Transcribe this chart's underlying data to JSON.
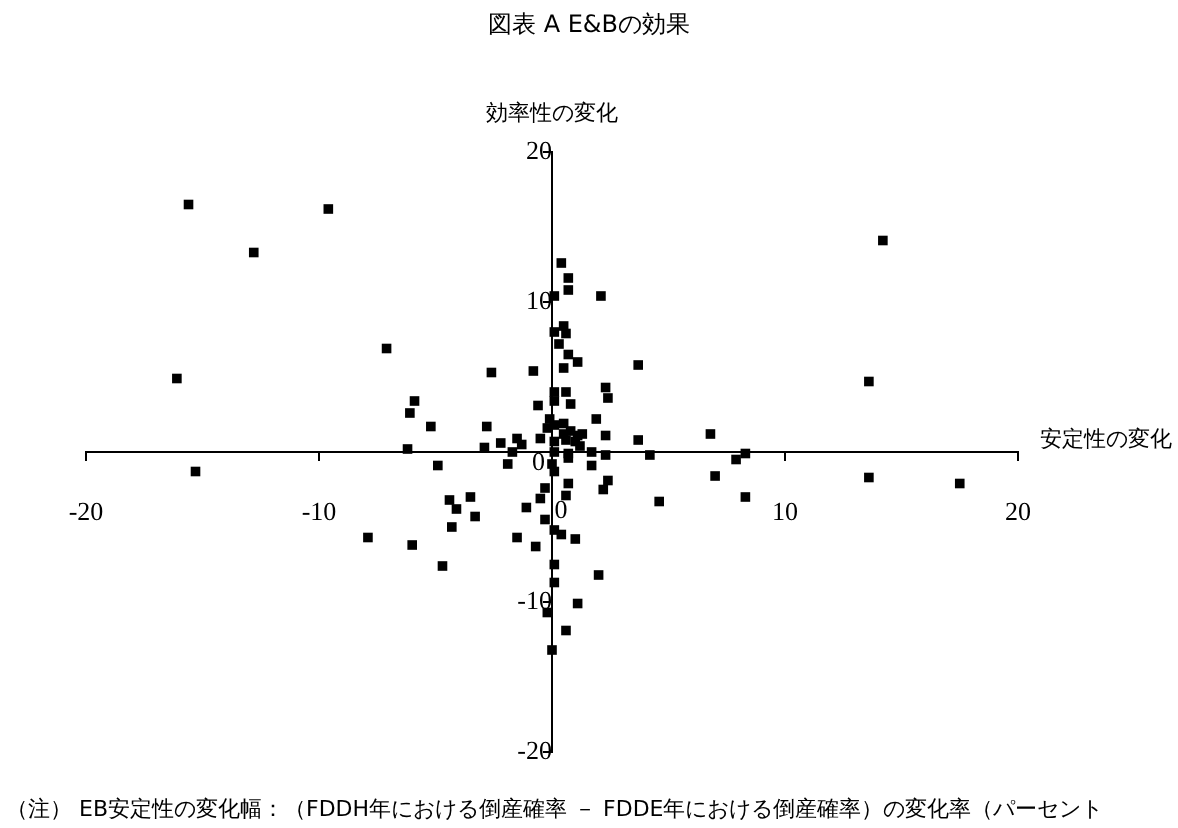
{
  "chart_data": {
    "type": "scatter",
    "title": "図表 A E&Bの効果",
    "xlabel": "安定性の変化",
    "ylabel": "効率性の変化",
    "annotations": [
      "（注） EB安定性の変化幅：（FDDH年における倒産確率 － FDDE年における倒産確率）の変化率（パーセント"
    ],
    "x": [
      0.4,
      0.7,
      0.7,
      0.1,
      2.1,
      0.5,
      0.1,
      0.6,
      0.3,
      0.7,
      1.1,
      0.5,
      3.7,
      -2.6,
      -0.8,
      2.3,
      2.4,
      0.1,
      0.6,
      0.1,
      0.8,
      -0.6,
      -5.9,
      -6.1,
      -5.2,
      -2.8,
      -0.1,
      0.1,
      0.5,
      1.9,
      -0.2,
      0.5,
      0.8,
      1.1,
      1.3,
      2.3,
      3.7,
      6.8,
      -6.2,
      -2.9,
      -2.2,
      -1.5,
      -1.3,
      -1.7,
      -0.5,
      0.1,
      0.6,
      1.0,
      0.1,
      0.7,
      0.7,
      1.2,
      1.7,
      2.3,
      4.2,
      7.9,
      8.3,
      -4.9,
      -1.9,
      0.0,
      0.1,
      1.7,
      -15.3,
      7.0,
      13.6,
      17.5,
      2.4,
      2.2,
      0.7,
      0.6,
      -0.3,
      -0.5,
      4.6,
      8.3,
      -4.4,
      -3.5,
      -4.1,
      -3.3,
      -4.3,
      -1.1,
      -0.3,
      0.1,
      0.4,
      1.0,
      -1.5,
      -0.7,
      -6.0,
      -7.9,
      -4.7,
      0.1,
      0.1,
      2.0,
      1.1,
      -0.2,
      0.6,
      0.0,
      -15.6,
      -9.6,
      -12.8,
      -7.1,
      -16.1,
      14.2,
      13.6
    ],
    "values": [
      12.6,
      11.6,
      10.8,
      10.4,
      10.4,
      8.4,
      8.0,
      7.9,
      7.2,
      6.5,
      6.0,
      5.6,
      5.8,
      5.3,
      5.4,
      4.3,
      3.6,
      4.0,
      4.0,
      3.4,
      3.2,
      3.1,
      3.4,
      2.6,
      1.7,
      1.7,
      2.2,
      1.8,
      1.9,
      2.2,
      1.6,
      1.2,
      1.4,
      1.1,
      1.2,
      1.1,
      0.8,
      1.2,
      0.2,
      0.3,
      0.6,
      0.9,
      0.5,
      0.0,
      0.9,
      0.7,
      0.8,
      0.7,
      0.0,
      -0.1,
      -0.4,
      0.4,
      0.0,
      -0.2,
      -0.2,
      -0.5,
      -0.1,
      -0.9,
      -0.8,
      -0.8,
      -1.3,
      -0.9,
      -1.3,
      -1.6,
      -1.7,
      -2.1,
      -1.9,
      -2.5,
      -2.1,
      -2.9,
      -2.4,
      -3.1,
      -3.3,
      -3.0,
      -3.2,
      -3.0,
      -3.8,
      -4.3,
      -5.0,
      -3.7,
      -4.5,
      -5.2,
      -5.5,
      -5.8,
      -5.7,
      -6.3,
      -6.2,
      -5.7,
      -7.6,
      -7.5,
      -8.7,
      -8.2,
      -10.1,
      -10.7,
      -11.9,
      -13.2,
      16.5,
      16.2,
      13.3,
      6.9,
      4.9,
      14.1,
      4.7
    ],
    "color": "#000000",
    "marker": "square",
    "xlim": [
      -20,
      20
    ],
    "xticks": [
      -20,
      -10,
      0,
      10,
      20
    ],
    "ylim": [
      -20,
      20
    ],
    "yticks": [
      -20,
      -10,
      0,
      10,
      20
    ],
    "grid": false,
    "legend": false
  }
}
